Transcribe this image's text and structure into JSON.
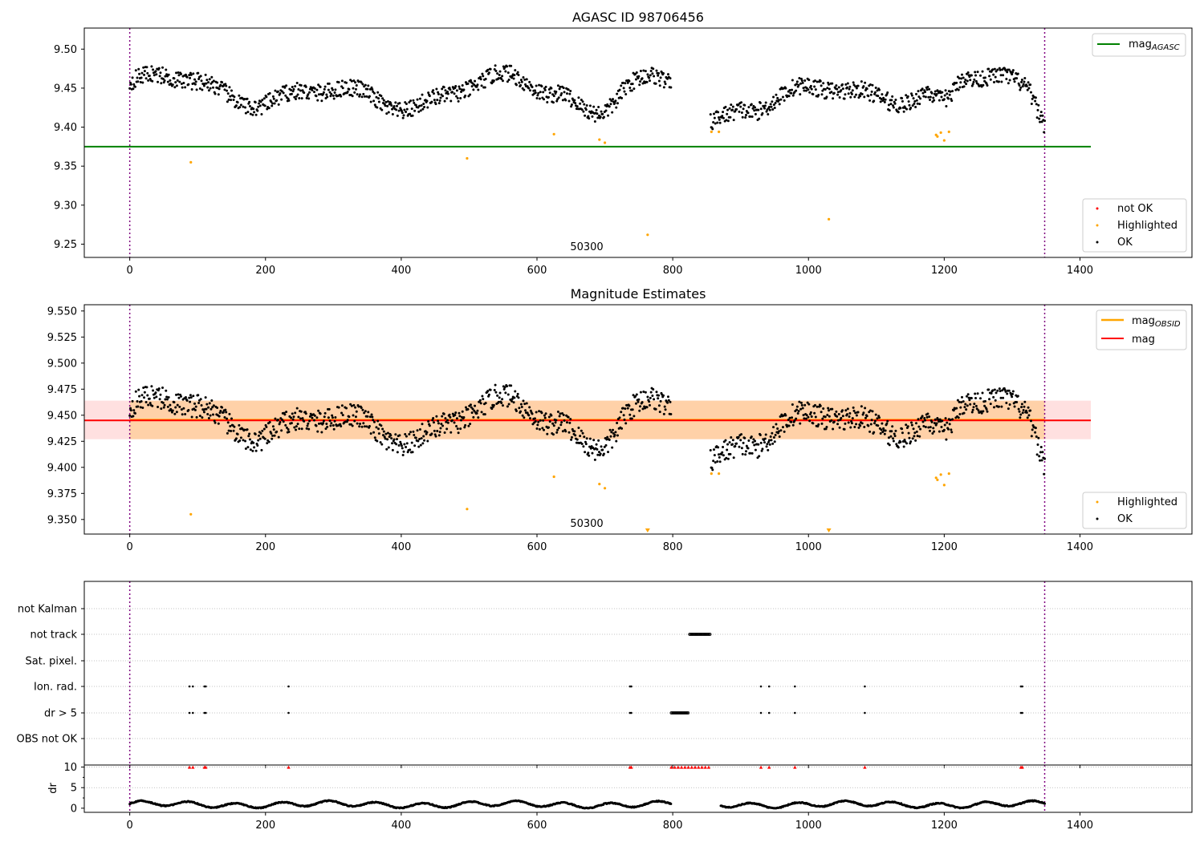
{
  "chart_data": [
    {
      "type": "scatter",
      "title": "AGASC ID 98706456",
      "xlabel": "",
      "ylabel": "",
      "xlim": [
        -67,
        1565
      ],
      "ylim": [
        9.233,
        9.527
      ],
      "x_ticks": [
        0,
        200,
        400,
        600,
        800,
        1000,
        1200,
        1400
      ],
      "y_ticks": [
        9.25,
        9.3,
        9.35,
        9.4,
        9.45,
        9.5
      ],
      "y_tick_labels": [
        "9.25",
        "9.30",
        "9.35",
        "9.40",
        "9.45",
        "9.50"
      ],
      "annotation": "50300",
      "obs_boundaries": [
        0,
        1348
      ],
      "reference_line": {
        "name_main": "mag",
        "name_sub": "AGASC",
        "value": 9.375,
        "x_range": [
          -67,
          1416
        ],
        "color": "#008000"
      },
      "legend_top": "top-right",
      "legend_bottom": "bottom-right",
      "series": [
        {
          "name": "not OK",
          "color": "#ff0000",
          "points": []
        },
        {
          "name": "Highlighted",
          "color": "#ffa500",
          "points": [
            [
              90,
              9.355
            ],
            [
              497,
              9.36
            ],
            [
              625,
              9.391
            ],
            [
              692,
              9.384
            ],
            [
              700,
              9.38
            ],
            [
              763,
              9.262
            ],
            [
              857,
              9.394
            ],
            [
              868,
              9.394
            ],
            [
              1030,
              9.282
            ],
            [
              1188,
              9.39
            ],
            [
              1190,
              9.388
            ],
            [
              1195,
              9.393
            ],
            [
              1200,
              9.383
            ],
            [
              1207,
              9.394
            ]
          ]
        },
        {
          "name": "OK",
          "color": "#000000",
          "n_points": 1340,
          "x_range": [
            0,
            1348
          ],
          "gap": [
            798,
            855
          ],
          "mean": 9.445,
          "pattern": "wavy"
        }
      ]
    },
    {
      "type": "scatter",
      "title": "Magnitude Estimates",
      "xlabel": "",
      "ylabel": "",
      "xlim": [
        -67,
        1565
      ],
      "ylim": [
        9.336,
        9.556
      ],
      "x_ticks": [
        0,
        200,
        400,
        600,
        800,
        1000,
        1200,
        1400
      ],
      "y_ticks": [
        9.35,
        9.375,
        9.4,
        9.425,
        9.45,
        9.475,
        9.5,
        9.525,
        9.55
      ],
      "y_tick_labels": [
        "9.350",
        "9.375",
        "9.400",
        "9.425",
        "9.450",
        "9.475",
        "9.500",
        "9.525",
        "9.550"
      ],
      "annotation": "50300",
      "obs_boundaries": [
        0,
        1348
      ],
      "mag_obsid": {
        "name_main": "mag",
        "name_sub": "OBSID",
        "value": 9.4455,
        "color": "#ffa500",
        "band": [
          9.427,
          9.464
        ]
      },
      "mag": {
        "name": "mag",
        "value": 9.445,
        "color": "#ff0000",
        "band": [
          9.427,
          9.464
        ]
      },
      "offscale_markers_x": [
        763,
        1030
      ],
      "legend_top": "top-right",
      "legend_bottom": "bottom-right",
      "series": [
        {
          "name": "Highlighted",
          "color": "#ffa500",
          "points": [
            [
              90,
              9.355
            ],
            [
              497,
              9.36
            ],
            [
              625,
              9.391
            ],
            [
              692,
              9.384
            ],
            [
              700,
              9.38
            ],
            [
              857,
              9.394
            ],
            [
              868,
              9.394
            ],
            [
              1188,
              9.39
            ],
            [
              1190,
              9.388
            ],
            [
              1195,
              9.393
            ],
            [
              1200,
              9.383
            ],
            [
              1207,
              9.394
            ]
          ]
        },
        {
          "name": "OK",
          "color": "#000000",
          "n_points": 1340,
          "x_range": [
            0,
            1348
          ],
          "gap": [
            798,
            855
          ],
          "mean": 9.445,
          "pattern": "wavy"
        }
      ]
    },
    {
      "type": "scatter",
      "title": "",
      "xlim": [
        -67,
        1565
      ],
      "x_ticks": [
        0,
        200,
        400,
        600,
        800,
        1000,
        1200,
        1400
      ],
      "obs_boundaries": [
        0,
        1348
      ],
      "flag_rows": [
        "not Kalman",
        "not track",
        "Sat. pixel.",
        "Ion. rad.",
        "dr > 5",
        "OBS not OK"
      ],
      "flag_points": {
        "not Kalman": [],
        "not track": {
          "range": [
            825,
            855
          ]
        },
        "Sat. pixel.": [],
        "Ion. rad.": [
          88,
          93,
          110,
          112,
          234,
          737,
          739,
          930,
          942,
          980,
          1083,
          1313,
          1315
        ],
        "dr > 5": [
          88,
          93,
          110,
          112,
          234,
          737,
          739,
          {
            "range": [
              798,
              823
            ]
          },
          930,
          942,
          980,
          1083,
          1313,
          1315
        ],
        "OBS not OK": []
      }
    },
    {
      "type": "scatter",
      "title": "",
      "ylabel": "dr",
      "xlim": [
        -67,
        1565
      ],
      "ylim": [
        -1,
        10.5
      ],
      "y_ticks": [
        0,
        5,
        10
      ],
      "y_tick_labels": [
        "0",
        "5",
        "10"
      ],
      "x_ticks": [
        0,
        200,
        400,
        600,
        800,
        1000,
        1200,
        1400
      ],
      "x_tick_labels": [
        "0",
        "200",
        "400",
        "600",
        "800",
        "1000",
        "1200",
        "1400"
      ],
      "obs_boundaries": [
        0,
        1348
      ],
      "clipped_markers_x": [
        88,
        93,
        110,
        112,
        234,
        737,
        739,
        798,
        803,
        808,
        813,
        818,
        823,
        828,
        833,
        838,
        843,
        848,
        853,
        930,
        942,
        980,
        1083,
        1313,
        1315
      ],
      "series": [
        {
          "name": "dr",
          "color": "#000000",
          "n_points": 1340,
          "x_range": [
            0,
            1348
          ],
          "gap": [
            798,
            870
          ],
          "y_range": [
            0,
            2.2
          ]
        }
      ]
    }
  ]
}
